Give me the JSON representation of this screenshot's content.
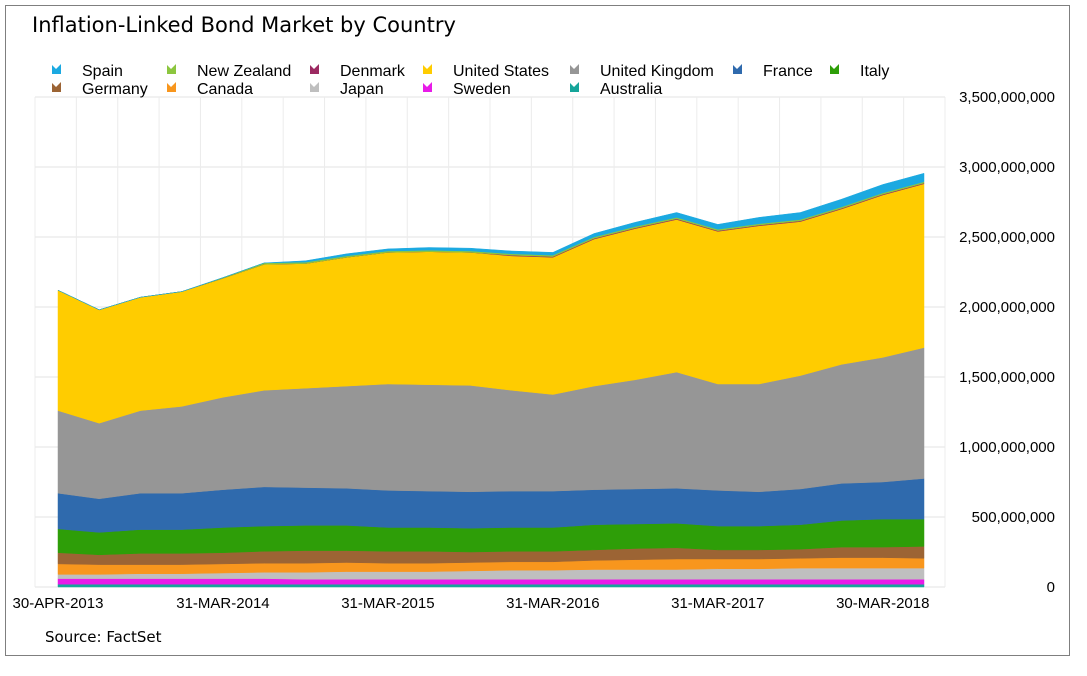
{
  "title": "Inflation-Linked Bond Market by Country",
  "source": "Source: FactSet",
  "chart_data": {
    "type": "area",
    "stacked": true,
    "title": "Inflation-Linked Bond Market by Country",
    "xlabel": "",
    "ylabel": "",
    "ylim": [
      0,
      3500000000
    ],
    "y_ticks": [
      0,
      500000000,
      1000000000,
      1500000000,
      2000000000,
      2500000000,
      3000000000,
      3500000000
    ],
    "y_tick_labels": [
      "0",
      "500,000,000",
      "1,000,000,000",
      "1,500,000,000",
      "2,000,000,000",
      "2,500,000,000",
      "3,000,000,000",
      "3,500,000,000"
    ],
    "y_axis_side": "right",
    "grid": true,
    "legend_position": "top",
    "x_tick_labels": [
      "30-APR-2013",
      "31-MAR-2014",
      "31-MAR-2015",
      "31-MAR-2016",
      "31-MAR-2017",
      "30-MAR-2018"
    ],
    "x_tick_index": [
      0,
      4,
      8,
      12,
      16,
      20
    ],
    "x": [
      "30-APR-2013",
      "31-JUL-2013",
      "31-OCT-2013",
      "31-DEC-2013",
      "31-MAR-2014",
      "30-JUN-2014",
      "30-SEP-2014",
      "31-DEC-2014",
      "31-MAR-2015",
      "30-JUN-2015",
      "30-SEP-2015",
      "31-DEC-2015",
      "31-MAR-2016",
      "30-JUN-2016",
      "30-SEP-2016",
      "31-DEC-2016",
      "31-MAR-2017",
      "30-JUN-2017",
      "29-SEP-2017",
      "29-DEC-2017",
      "30-MAR-2018",
      "29-JUN-2018"
    ],
    "series": [
      {
        "name": "Australia",
        "color": "#16a59a",
        "values": [
          20000000,
          20000000,
          20000000,
          20000000,
          20000000,
          20000000,
          20000000,
          20000000,
          20000000,
          20000000,
          20000000,
          20000000,
          20000000,
          20000000,
          20000000,
          20000000,
          20000000,
          20000000,
          20000000,
          20000000,
          20000000,
          20000000
        ]
      },
      {
        "name": "Sweden",
        "color": "#e81be8",
        "values": [
          40000000,
          40000000,
          40000000,
          40000000,
          40000000,
          40000000,
          35000000,
          35000000,
          35000000,
          35000000,
          35000000,
          35000000,
          35000000,
          35000000,
          35000000,
          35000000,
          35000000,
          35000000,
          35000000,
          35000000,
          35000000,
          35000000
        ]
      },
      {
        "name": "Japan",
        "color": "#bfbfbf",
        "values": [
          30000000,
          30000000,
          35000000,
          35000000,
          40000000,
          45000000,
          50000000,
          55000000,
          55000000,
          55000000,
          60000000,
          65000000,
          65000000,
          70000000,
          70000000,
          70000000,
          75000000,
          75000000,
          80000000,
          80000000,
          80000000,
          80000000
        ]
      },
      {
        "name": "Canada",
        "color": "#f8961d",
        "values": [
          75000000,
          70000000,
          65000000,
          65000000,
          65000000,
          65000000,
          65000000,
          65000000,
          60000000,
          60000000,
          60000000,
          60000000,
          60000000,
          65000000,
          70000000,
          75000000,
          70000000,
          70000000,
          70000000,
          75000000,
          75000000,
          70000000
        ]
      },
      {
        "name": "Germany",
        "color": "#9c6434",
        "values": [
          80000000,
          70000000,
          80000000,
          80000000,
          80000000,
          85000000,
          90000000,
          85000000,
          85000000,
          85000000,
          75000000,
          75000000,
          75000000,
          75000000,
          80000000,
          80000000,
          65000000,
          65000000,
          65000000,
          75000000,
          75000000,
          85000000
        ]
      },
      {
        "name": "Italy",
        "color": "#2e9e08",
        "values": [
          170000000,
          160000000,
          170000000,
          170000000,
          180000000,
          180000000,
          180000000,
          180000000,
          170000000,
          170000000,
          170000000,
          170000000,
          170000000,
          180000000,
          175000000,
          175000000,
          170000000,
          170000000,
          175000000,
          190000000,
          200000000,
          195000000
        ]
      },
      {
        "name": "France",
        "color": "#2f6aad",
        "values": [
          255000000,
          240000000,
          260000000,
          260000000,
          270000000,
          280000000,
          270000000,
          265000000,
          265000000,
          260000000,
          260000000,
          260000000,
          260000000,
          250000000,
          250000000,
          250000000,
          255000000,
          245000000,
          255000000,
          265000000,
          265000000,
          290000000
        ]
      },
      {
        "name": "United Kingdom",
        "color": "#969696",
        "values": [
          590000000,
          540000000,
          590000000,
          620000000,
          660000000,
          690000000,
          710000000,
          730000000,
          760000000,
          760000000,
          760000000,
          720000000,
          690000000,
          740000000,
          780000000,
          830000000,
          760000000,
          770000000,
          810000000,
          850000000,
          890000000,
          935000000
        ]
      },
      {
        "name": "United States",
        "color": "#ffcc00",
        "values": [
          860000000,
          810000000,
          810000000,
          820000000,
          850000000,
          900000000,
          890000000,
          920000000,
          940000000,
          950000000,
          950000000,
          960000000,
          980000000,
          1050000000,
          1080000000,
          1090000000,
          1090000000,
          1130000000,
          1100000000,
          1110000000,
          1160000000,
          1170000000
        ]
      },
      {
        "name": "Denmark",
        "color": "#9c2a62",
        "values": [
          0,
          0,
          0,
          0,
          0,
          0,
          0,
          0,
          0,
          0,
          0,
          5000000,
          5000000,
          5000000,
          5000000,
          5000000,
          5000000,
          5000000,
          5000000,
          5000000,
          5000000,
          5000000
        ]
      },
      {
        "name": "New Zealand",
        "color": "#8cc63f",
        "values": [
          0,
          0,
          0,
          0,
          5000000,
          10000000,
          10000000,
          10000000,
          10000000,
          10000000,
          10000000,
          10000000,
          10000000,
          10000000,
          10000000,
          10000000,
          10000000,
          10000000,
          10000000,
          10000000,
          10000000,
          10000000
        ]
      },
      {
        "name": "Spain",
        "color": "#1ba9e1",
        "values": [
          0,
          0,
          0,
          0,
          0,
          0,
          10000000,
          15000000,
          15000000,
          20000000,
          20000000,
          20000000,
          20000000,
          25000000,
          30000000,
          35000000,
          35000000,
          45000000,
          50000000,
          55000000,
          60000000,
          60000000
        ]
      }
    ],
    "legend_order": [
      "Spain",
      "New Zealand",
      "Denmark",
      "United States",
      "United Kingdom",
      "France",
      "Italy",
      "Germany",
      "Canada",
      "Japan",
      "Sweden",
      "Australia"
    ]
  }
}
